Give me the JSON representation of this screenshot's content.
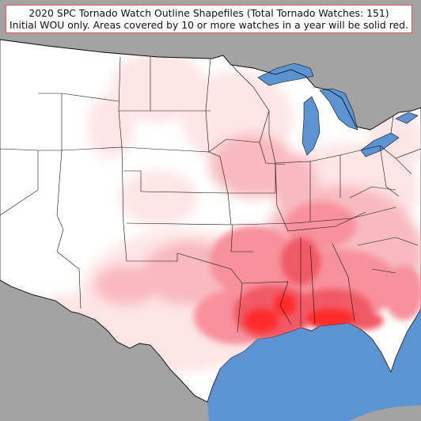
{
  "title": {
    "line1": "2020 SPC Tornado Watch Outline Shapefiles (Total Tornado Watches: 151)",
    "line2": "Initial WOU only. Areas covered by 10 or more watches in a year will be solid red."
  },
  "colors": {
    "ocean": "#5b93d3",
    "land_outside": "#a3a3a3",
    "land_us": "#ffffff",
    "watch_low": "#fde2e4",
    "watch_mid": "#f99aa3",
    "watch_high": "#f05a66",
    "watch_solid": "#ff1a1a",
    "border": "#111111",
    "title_border": "#e05a5a"
  }
}
